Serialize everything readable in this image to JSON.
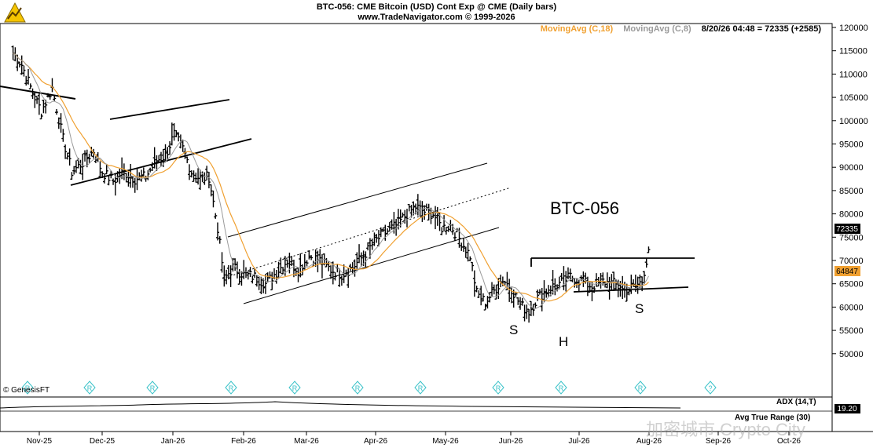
{
  "header": {
    "title": "BTC-056:  CME Bitcoin (USD) Cont Exp @ CME  (Daily bars)",
    "subtitle": "www.TradeNavigator.com © 1999-2026"
  },
  "legend": {
    "ma18": "MovingAvg (C,18)",
    "ma8": "MovingAvg (C,8)",
    "quote": "8/20/26 04:48 = 72335 (+2585)"
  },
  "brand": "© GenesisFT",
  "annotations": {
    "symbol": "BTC-056",
    "left_shoulder": "S",
    "head": "H",
    "right_shoulder": "S"
  },
  "panes": {
    "adx": {
      "label": "ADX (14,T)",
      "value": "19.20"
    },
    "atr": {
      "label": "Avg True Range (30)"
    }
  },
  "watermark": "加密城市 Crypto City",
  "colors": {
    "ma18": "#f0a030",
    "ma8": "#9a9a9a",
    "price_marker_last": "#000000",
    "price_marker_ma": "#f0a030",
    "event_marker": "#39c2c8"
  },
  "chart_data": {
    "type": "ohlc",
    "title": "BTC-056:  CME Bitcoin (USD) Cont Exp @ CME  (Daily bars)",
    "x_ticks": [
      "Nov-25",
      "Dec-25",
      "Jan-26",
      "Feb-26",
      "Mar-26",
      "Apr-26",
      "May-26",
      "Jun-26",
      "Jul-26",
      "Aug-26",
      "Sep-26",
      "Oct-26"
    ],
    "y_ticks": [
      "120000",
      "115000",
      "110000",
      "105000",
      "100000",
      "95000",
      "90000",
      "85000",
      "80000",
      "75000",
      "70000",
      "65000",
      "60000",
      "55000",
      "50000"
    ],
    "ylim": [
      45000,
      122000
    ],
    "last_price": "72335",
    "ma_value": "64847",
    "close_series": [
      {
        "date": "2025-11-01",
        "close": 114500
      },
      {
        "date": "2025-11-05",
        "close": 112000
      },
      {
        "date": "2025-11-10",
        "close": 106000
      },
      {
        "date": "2025-11-14",
        "close": 102000
      },
      {
        "date": "2025-11-19",
        "close": 107000
      },
      {
        "date": "2025-11-24",
        "close": 96000
      },
      {
        "date": "2025-11-28",
        "close": 89000
      },
      {
        "date": "2025-12-03",
        "close": 91000
      },
      {
        "date": "2025-12-08",
        "close": 93500
      },
      {
        "date": "2025-12-12",
        "close": 89000
      },
      {
        "date": "2025-12-17",
        "close": 87000
      },
      {
        "date": "2025-12-22",
        "close": 89000
      },
      {
        "date": "2025-12-27",
        "close": 87500
      },
      {
        "date": "2026-01-01",
        "close": 88000
      },
      {
        "date": "2026-01-06",
        "close": 91500
      },
      {
        "date": "2026-01-10",
        "close": 92500
      },
      {
        "date": "2026-01-14",
        "close": 97000
      },
      {
        "date": "2026-01-18",
        "close": 94000
      },
      {
        "date": "2026-01-22",
        "close": 89000
      },
      {
        "date": "2026-01-26",
        "close": 87500
      },
      {
        "date": "2026-01-30",
        "close": 88000
      },
      {
        "date": "2026-02-03",
        "close": 77000
      },
      {
        "date": "2026-02-06",
        "close": 66000
      },
      {
        "date": "2026-02-10",
        "close": 68500
      },
      {
        "date": "2026-02-15",
        "close": 67000
      },
      {
        "date": "2026-02-20",
        "close": 66500
      },
      {
        "date": "2026-02-25",
        "close": 65000
      },
      {
        "date": "2026-03-02",
        "close": 67500
      },
      {
        "date": "2026-03-07",
        "close": 70000
      },
      {
        "date": "2026-03-12",
        "close": 68000
      },
      {
        "date": "2026-03-17",
        "close": 71000
      },
      {
        "date": "2026-03-22",
        "close": 70000
      },
      {
        "date": "2026-03-27",
        "close": 68000
      },
      {
        "date": "2026-04-01",
        "close": 67000
      },
      {
        "date": "2026-04-06",
        "close": 68500
      },
      {
        "date": "2026-04-11",
        "close": 71000
      },
      {
        "date": "2026-04-16",
        "close": 74000
      },
      {
        "date": "2026-04-21",
        "close": 76000
      },
      {
        "date": "2026-04-26",
        "close": 77500
      },
      {
        "date": "2026-05-01",
        "close": 80000
      },
      {
        "date": "2026-05-05",
        "close": 81500
      },
      {
        "date": "2026-05-09",
        "close": 80500
      },
      {
        "date": "2026-05-13",
        "close": 80000
      },
      {
        "date": "2026-05-17",
        "close": 77000
      },
      {
        "date": "2026-05-21",
        "close": 77500
      },
      {
        "date": "2026-05-26",
        "close": 74000
      },
      {
        "date": "2026-05-30",
        "close": 71000
      },
      {
        "date": "2026-06-02",
        "close": 63000
      },
      {
        "date": "2026-06-06",
        "close": 61000
      },
      {
        "date": "2026-06-10",
        "close": 63500
      },
      {
        "date": "2026-06-14",
        "close": 66000
      },
      {
        "date": "2026-06-18",
        "close": 64000
      },
      {
        "date": "2026-06-22",
        "close": 60500
      },
      {
        "date": "2026-06-26",
        "close": 59000
      },
      {
        "date": "2026-06-30",
        "close": 62000
      },
      {
        "date": "2026-07-05",
        "close": 64000
      },
      {
        "date": "2026-07-10",
        "close": 65000
      },
      {
        "date": "2026-07-15",
        "close": 66500
      },
      {
        "date": "2026-07-20",
        "close": 65500
      },
      {
        "date": "2026-07-25",
        "close": 64500
      },
      {
        "date": "2026-07-30",
        "close": 65500
      },
      {
        "date": "2026-08-04",
        "close": 65000
      },
      {
        "date": "2026-08-09",
        "close": 63500
      },
      {
        "date": "2026-08-14",
        "close": 64500
      },
      {
        "date": "2026-08-17",
        "close": 65500
      },
      {
        "date": "2026-08-20",
        "close": 72335
      }
    ]
  }
}
